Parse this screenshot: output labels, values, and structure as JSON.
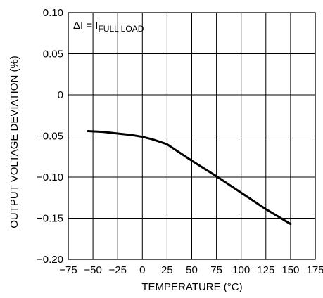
{
  "chart_data": {
    "type": "line",
    "title": "",
    "xlabel": "TEMPERATURE (°C)",
    "ylabel": "OUTPUT VOLTAGE DEVIATION (%)",
    "xlim": [
      -75,
      175
    ],
    "ylim": [
      -0.2,
      0.1
    ],
    "grid": true,
    "x_ticks": [
      -75,
      -50,
      -25,
      0,
      25,
      50,
      75,
      100,
      125,
      150,
      175
    ],
    "x_tick_labels": [
      "−75",
      "−50",
      "−25",
      "0",
      "25",
      "50",
      "75",
      "100",
      "125",
      "150",
      "175"
    ],
    "y_ticks": [
      0.1,
      0.05,
      0,
      -0.05,
      -0.1,
      -0.15,
      -0.2
    ],
    "y_tick_labels": [
      "0.10",
      "0.05",
      "0",
      "−0.05",
      "−0.10",
      "−0.15",
      "−0.20"
    ],
    "annotation": {
      "main": "ΔI = I",
      "subscript": "FULL LOAD"
    },
    "series": [
      {
        "x": [
          -55,
          -40,
          -25,
          -10,
          0,
          10,
          25,
          35,
          50,
          75,
          100,
          125,
          150
        ],
        "y": [
          -0.044,
          -0.045,
          -0.047,
          -0.049,
          -0.051,
          -0.054,
          -0.06,
          -0.068,
          -0.08,
          -0.099,
          -0.119,
          -0.139,
          -0.157
        ]
      }
    ]
  }
}
